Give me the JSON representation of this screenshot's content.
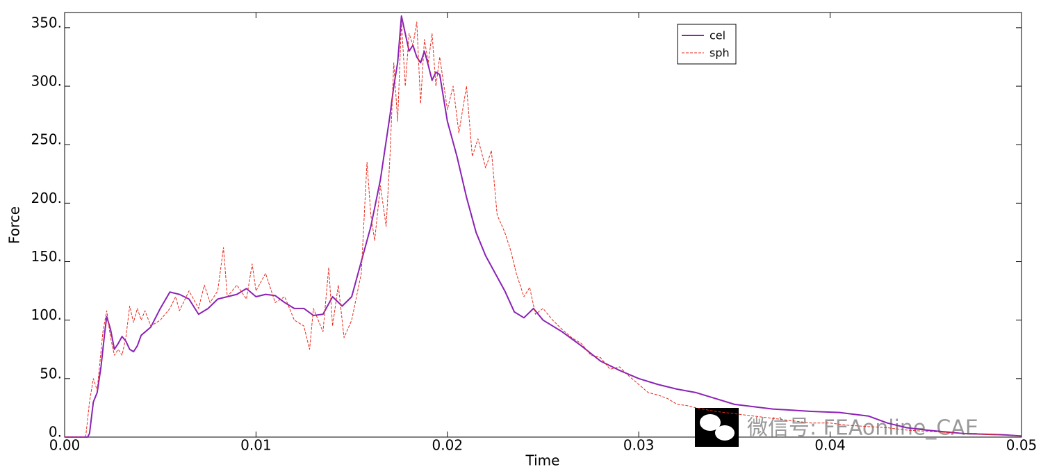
{
  "chart_data": {
    "type": "line",
    "xlabel": "Time",
    "ylabel": "Force",
    "xlim": [
      0,
      0.05
    ],
    "ylim": [
      0,
      363
    ],
    "xticks": [
      {
        "value": 0,
        "label": "0.00"
      },
      0.01,
      0.02,
      0.03,
      0.04,
      0.05
    ],
    "yticks": [
      {
        "value": 0,
        "label": "0."
      },
      {
        "value": 50,
        "label": "50."
      },
      {
        "value": 100,
        "label": "100."
      },
      {
        "value": 150,
        "label": "150."
      },
      {
        "value": 200,
        "label": "200."
      },
      {
        "value": 250,
        "label": "250."
      },
      {
        "value": 300,
        "label": "300."
      },
      {
        "value": 350,
        "label": "350."
      }
    ],
    "grid": false,
    "legend": "upper right",
    "watermark": "微信号: FEAonline_CAE",
    "series": [
      {
        "name": "cel",
        "color": "#8a22b5",
        "dash": false,
        "x": [
          0,
          0.0012,
          0.0013,
          0.0015,
          0.0017,
          0.0019,
          0.0021,
          0.0022,
          0.0024,
          0.0026,
          0.0028,
          0.003,
          0.0032,
          0.0034,
          0.0036,
          0.0038,
          0.004,
          0.0045,
          0.005,
          0.0055,
          0.006,
          0.0065,
          0.007,
          0.0075,
          0.008,
          0.0085,
          0.009,
          0.0095,
          0.01,
          0.0105,
          0.011,
          0.0115,
          0.012,
          0.0125,
          0.013,
          0.0135,
          0.014,
          0.0145,
          0.015,
          0.0155,
          0.016,
          0.0165,
          0.017,
          0.0172,
          0.0174,
          0.0176,
          0.0178,
          0.018,
          0.0182,
          0.0184,
          0.0186,
          0.0188,
          0.019,
          0.0192,
          0.0194,
          0.0196,
          0.02,
          0.0205,
          0.021,
          0.0215,
          0.022,
          0.0225,
          0.023,
          0.0235,
          0.024,
          0.0245,
          0.025,
          0.026,
          0.027,
          0.028,
          0.029,
          0.03,
          0.031,
          0.032,
          0.033,
          0.034,
          0.035,
          0.036,
          0.037,
          0.038,
          0.039,
          0.0405,
          0.041,
          0.042,
          0.043,
          0.044,
          0.045,
          0.047,
          0.049,
          0.05
        ],
        "values": [
          0,
          0,
          3,
          30,
          38,
          60,
          90,
          103,
          92,
          75,
          80,
          86,
          82,
          75,
          73,
          78,
          87,
          94,
          110,
          124,
          122,
          118,
          105,
          110,
          118,
          120,
          122,
          127,
          120,
          122,
          121,
          115,
          110,
          110,
          104,
          105,
          120,
          112,
          120,
          150,
          180,
          220,
          275,
          300,
          320,
          360,
          345,
          330,
          335,
          325,
          320,
          330,
          318,
          305,
          312,
          310,
          270,
          240,
          205,
          175,
          155,
          140,
          125,
          107,
          102,
          110,
          100,
          90,
          78,
          65,
          57,
          50,
          45,
          41,
          38,
          33,
          28,
          26,
          24,
          23,
          22,
          21,
          20,
          18,
          12,
          8,
          6,
          3,
          2,
          1
        ]
      },
      {
        "name": "sph",
        "color": "#e8291c",
        "dash": true,
        "x": [
          0,
          0.0011,
          0.0013,
          0.0015,
          0.0017,
          0.002,
          0.0022,
          0.0024,
          0.0026,
          0.0028,
          0.003,
          0.0032,
          0.0034,
          0.0036,
          0.0038,
          0.004,
          0.0042,
          0.0045,
          0.005,
          0.0055,
          0.0058,
          0.006,
          0.0065,
          0.007,
          0.0073,
          0.0076,
          0.008,
          0.0083,
          0.0085,
          0.009,
          0.0095,
          0.0098,
          0.01,
          0.0105,
          0.011,
          0.0115,
          0.012,
          0.0125,
          0.0128,
          0.013,
          0.0135,
          0.0138,
          0.014,
          0.0143,
          0.0146,
          0.015,
          0.0155,
          0.0158,
          0.016,
          0.0162,
          0.0165,
          0.0168,
          0.017,
          0.0172,
          0.0174,
          0.0176,
          0.0178,
          0.018,
          0.0182,
          0.0184,
          0.0186,
          0.0188,
          0.019,
          0.0192,
          0.0194,
          0.0196,
          0.02,
          0.0203,
          0.0206,
          0.021,
          0.0213,
          0.0216,
          0.022,
          0.0223,
          0.0226,
          0.023,
          0.0233,
          0.0236,
          0.024,
          0.0243,
          0.0246,
          0.025,
          0.0255,
          0.026,
          0.0265,
          0.027,
          0.0275,
          0.028,
          0.0285,
          0.029,
          0.0295,
          0.03,
          0.0305,
          0.031,
          0.0315,
          0.032,
          0.0325,
          0.033,
          0.034,
          0.035,
          0.036,
          0.037,
          0.038,
          0.039,
          0.04,
          0.041,
          0.042,
          0.043,
          0.044,
          0.045,
          0.047,
          0.05
        ],
        "values": [
          0,
          0,
          30,
          50,
          40,
          90,
          108,
          85,
          70,
          75,
          70,
          85,
          112,
          98,
          110,
          100,
          108,
          95,
          100,
          110,
          120,
          108,
          125,
          110,
          130,
          115,
          125,
          162,
          120,
          130,
          118,
          148,
          125,
          140,
          115,
          120,
          100,
          95,
          75,
          110,
          90,
          145,
          95,
          130,
          85,
          100,
          140,
          235,
          190,
          168,
          215,
          180,
          240,
          320,
          270,
          355,
          300,
          345,
          335,
          355,
          285,
          340,
          320,
          345,
          300,
          325,
          280,
          300,
          260,
          300,
          240,
          255,
          230,
          245,
          190,
          175,
          160,
          140,
          120,
          128,
          105,
          110,
          100,
          92,
          85,
          80,
          70,
          68,
          58,
          60,
          52,
          45,
          38,
          36,
          33,
          28,
          27,
          25,
          22,
          20,
          18,
          16,
          14,
          12,
          12,
          10,
          9,
          8,
          6,
          5,
          3,
          1
        ]
      }
    ]
  }
}
